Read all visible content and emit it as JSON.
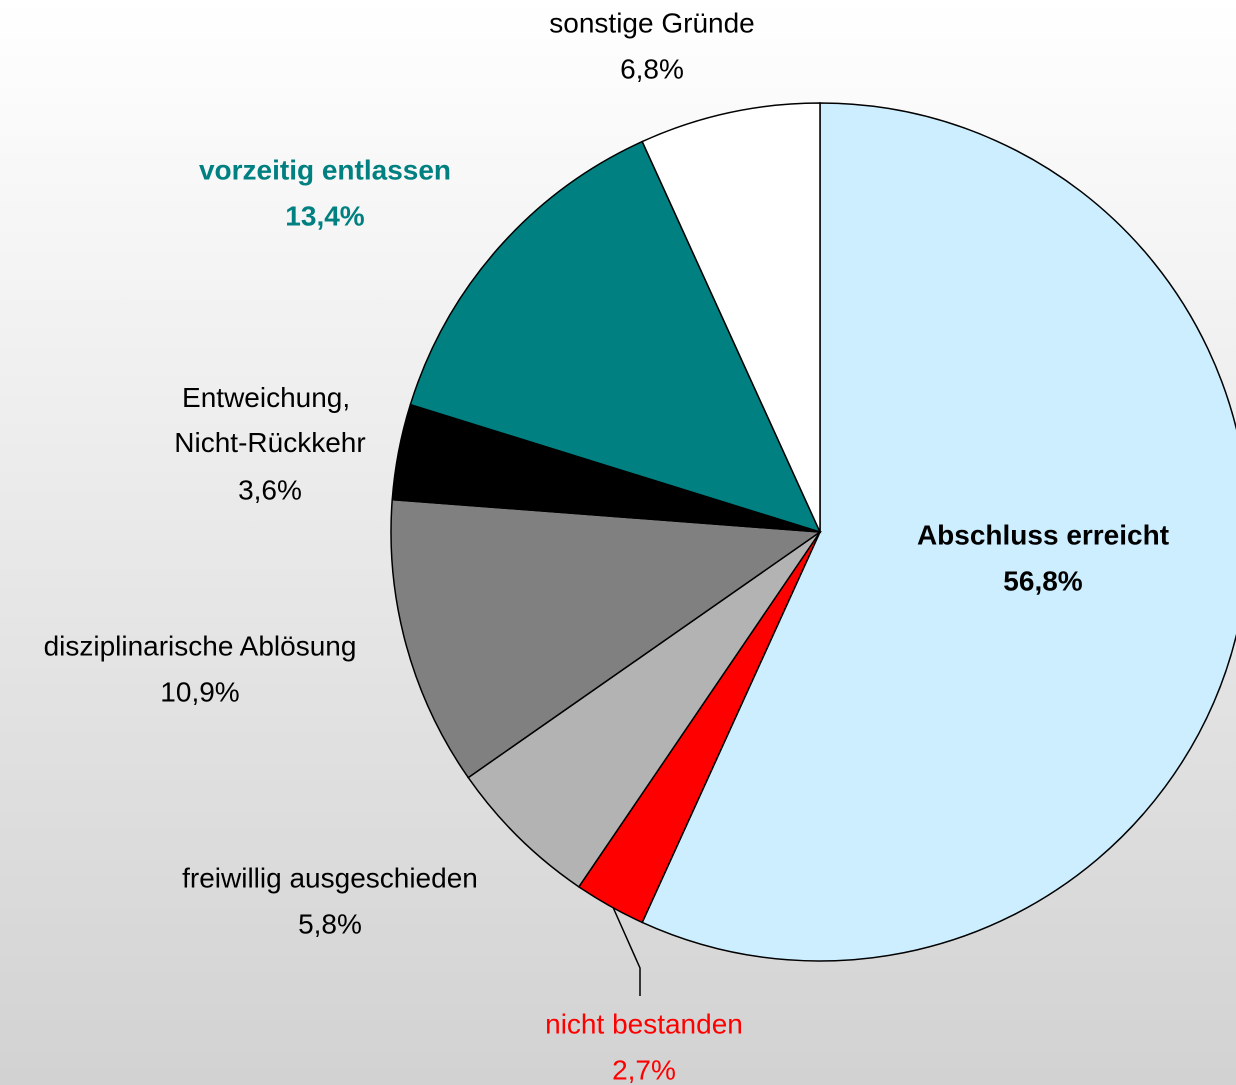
{
  "chart_data": {
    "type": "pie",
    "categories": [
      "Abschluss erreicht",
      "nicht bestanden",
      "freiwillig ausgeschieden",
      "disziplinarische Ablösung",
      "Entweichung, Nicht-Rückkehr",
      "vorzeitig entlassen",
      "sonstige Gründe"
    ],
    "values": [
      56.8,
      2.7,
      5.8,
      10.9,
      3.6,
      13.4,
      6.8
    ],
    "value_labels": [
      "56,8%",
      "2,7%",
      "5,8%",
      "10,9%",
      "3,6%",
      "13,4%",
      "6,8%"
    ],
    "colors": [
      "#cceeff",
      "#ff0000",
      "#b3b3b3",
      "#808080",
      "#000000",
      "#008080",
      "#ffffff"
    ],
    "label_colors": [
      "#000000",
      "#ff0000",
      "#000000",
      "#000000",
      "#000000",
      "#008080",
      "#000000"
    ]
  }
}
